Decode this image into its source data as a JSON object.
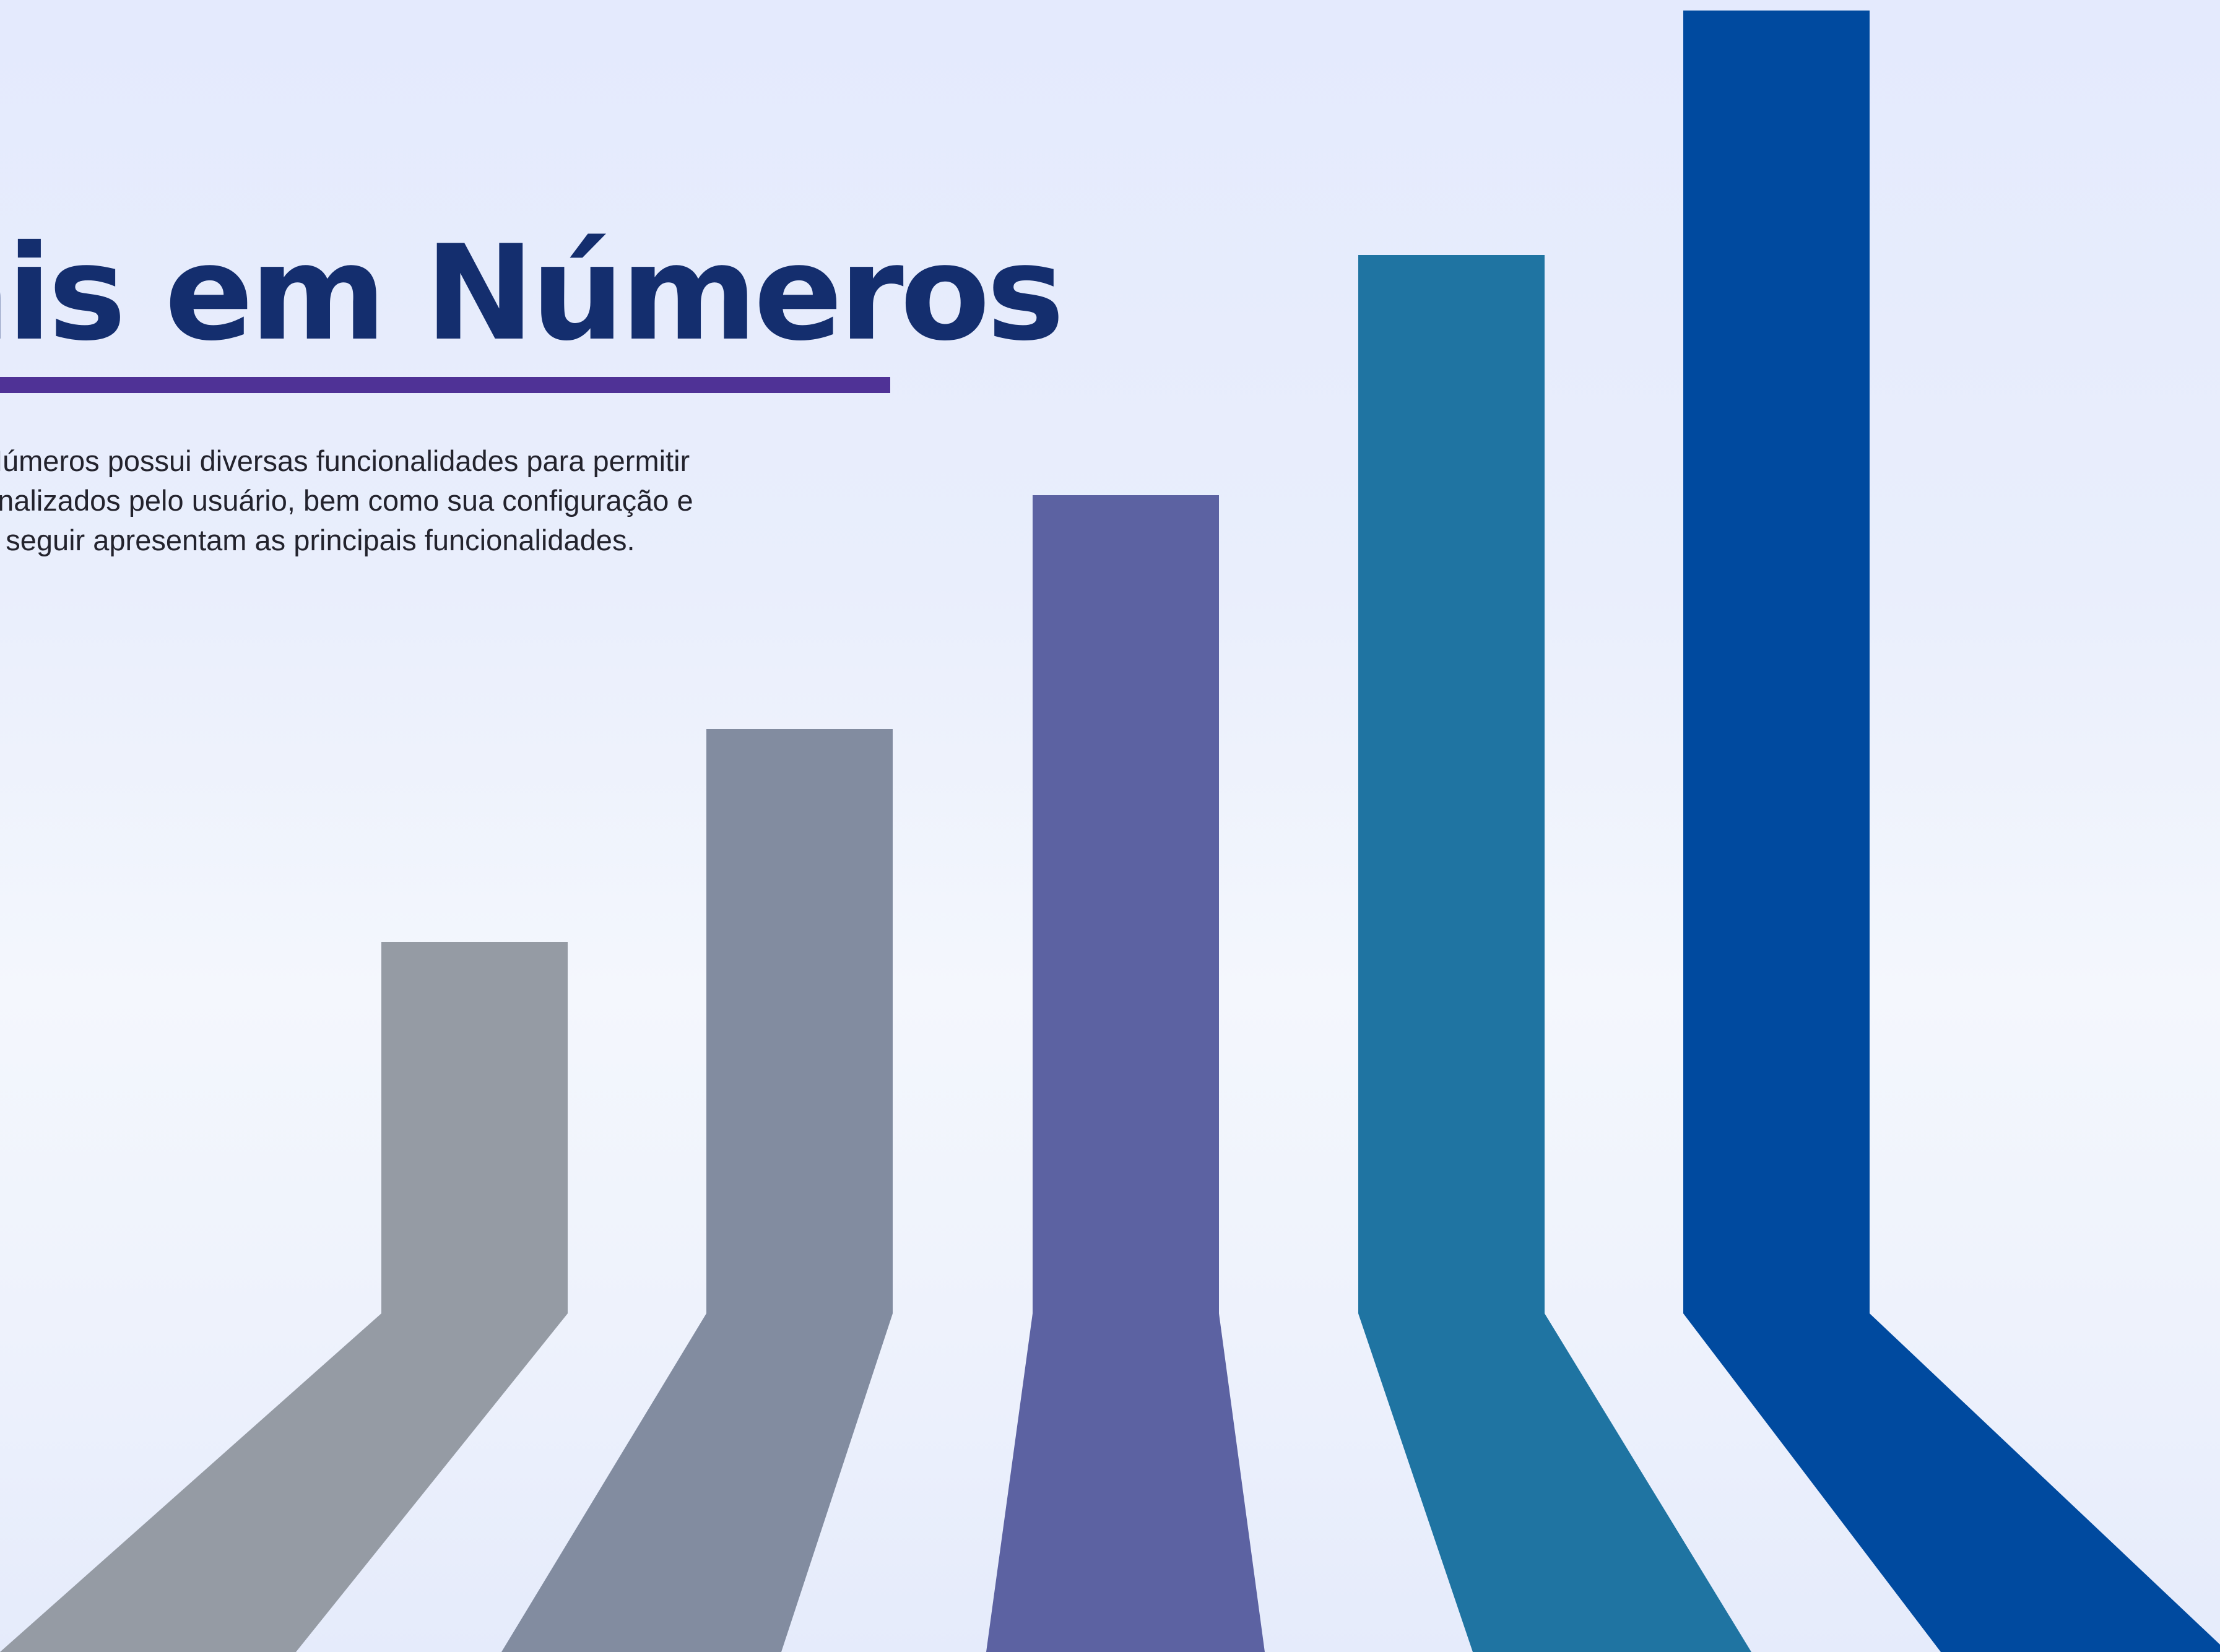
{
  "header": {
    "title": "ais em Números"
  },
  "description": {
    "lines": [
      "Números possui diversas funcionalidades para permitir",
      "onalizados pelo usuário, bem como sua configuração e",
      "a seguir apresentam as principais funcionalidades."
    ]
  },
  "colors": {
    "title": "#142e6e",
    "underline": "#4f3296",
    "bars": [
      "#959ba4",
      "#828ca0",
      "#5c62a2",
      "#1f74a2",
      "#004a9f"
    ]
  },
  "bars_illustration": {
    "count": 5,
    "relative_heights": [
      0.38,
      0.55,
      0.73,
      0.91,
      1.0
    ]
  }
}
